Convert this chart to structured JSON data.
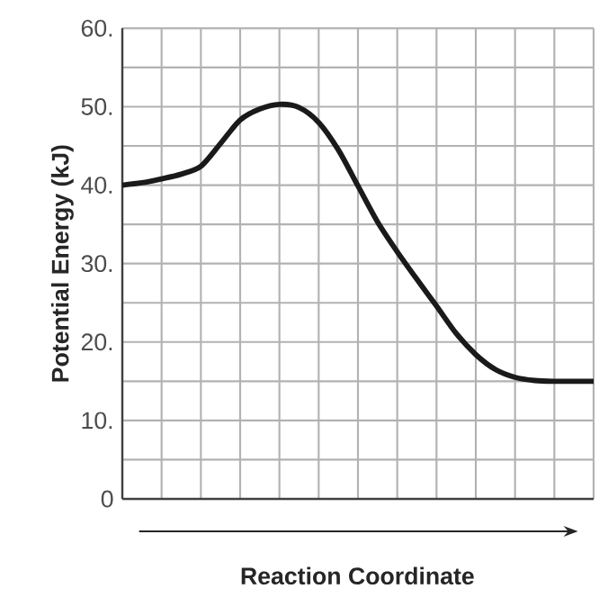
{
  "chart_data": {
    "type": "line",
    "xlabel": "Reaction Coordinate",
    "ylabel": "Potential Energy (kJ)",
    "categories": [
      null,
      null,
      null,
      null,
      null,
      null,
      null,
      null,
      null,
      null,
      null,
      null,
      null,
      null,
      null,
      null,
      null,
      null,
      null,
      null,
      null,
      null,
      null,
      null,
      null
    ],
    "values": [
      40,
      40.3,
      40.8,
      41.4,
      42.4,
      45.3,
      48.3,
      49.7,
      50.3,
      49.9,
      48,
      44.5,
      39.9,
      35.3,
      31.5,
      28,
      24.6,
      21.1,
      18.4,
      16.5,
      15.5,
      15.1,
      15,
      15,
      15
    ],
    "color": "#1a1a1a",
    "ylim": [
      0,
      60
    ],
    "yticks": [
      0,
      {
        "value": 5,
        "label": null
      },
      {
        "value": 10,
        "label": "10."
      },
      {
        "value": 15,
        "label": null
      },
      {
        "value": 20,
        "label": "20."
      },
      {
        "value": 25,
        "label": null
      },
      {
        "value": 30,
        "label": "30."
      },
      {
        "value": 35,
        "label": null
      },
      {
        "value": 40,
        "label": "40."
      },
      {
        "value": 45,
        "label": null
      },
      {
        "value": 50,
        "label": "50."
      },
      {
        "value": 55,
        "label": null
      },
      {
        "value": 60,
        "label": "60."
      }
    ],
    "grid": true,
    "tick_labels": "y",
    "marker": "none",
    "line_style": "solid"
  }
}
